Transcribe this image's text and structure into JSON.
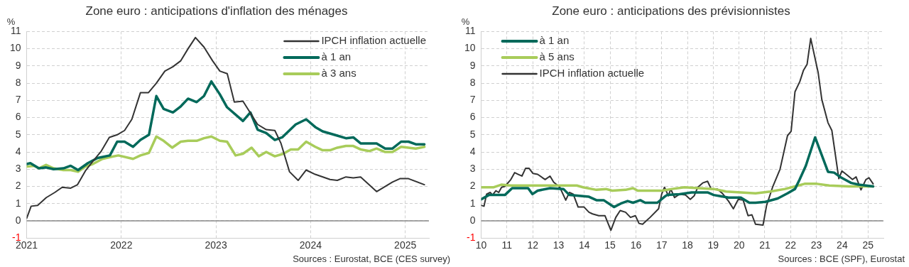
{
  "chart_data": [
    {
      "type": "line",
      "title": "Zone euro : anticipations d'inflation des ménages",
      "ylabel": "%",
      "legend": "top right",
      "grid": true,
      "marker": "none",
      "line_style": "solid",
      "xlim": [
        2021,
        2025.25
      ],
      "xticks": [
        2021,
        2022,
        2023,
        2024,
        2025
      ],
      "ylim": [
        -1,
        11
      ],
      "yticks": [
        -1,
        0,
        1,
        2,
        3,
        4,
        5,
        6,
        7,
        8,
        9,
        10,
        11
      ],
      "annotations": [
        "Sources : Eurostat, BCE (CES survey)"
      ],
      "ref_lines": [
        {
          "axis": "y",
          "value": 0,
          "color": "#888888",
          "line_style": "solid"
        }
      ],
      "series": [
        {
          "name": "IPCH inflation actuelle",
          "color": "#333333",
          "x": [
            2021.0,
            2021.047,
            2021.116,
            2021.207,
            2021.297,
            2021.375,
            2021.465,
            2021.537,
            2021.62,
            2021.698,
            2021.788,
            2021.873,
            2021.956,
            2022.034,
            2022.111,
            2022.202,
            2022.287,
            2022.37,
            2022.46,
            2022.543,
            2022.628,
            2022.705,
            2022.783,
            2022.873,
            2022.964,
            2023.041,
            2023.119,
            2023.194,
            2023.285,
            2023.44,
            2023.531,
            2023.622,
            2023.687,
            2023.777,
            2023.868,
            2023.953,
            2024.049,
            2024.205,
            2024.282,
            2024.373,
            2024.451,
            2024.528,
            2024.697,
            2024.865,
            2024.943,
            2025.034,
            2025.202
          ],
          "values": [
            0.15,
            0.85,
            0.9,
            1.35,
            1.65,
            1.95,
            1.9,
            2.1,
            2.9,
            3.45,
            4.05,
            4.85,
            5.0,
            5.25,
            5.9,
            7.45,
            7.45,
            8.0,
            8.7,
            8.95,
            9.3,
            10.0,
            10.65,
            10.1,
            9.3,
            8.7,
            8.55,
            6.9,
            6.95,
            5.6,
            5.3,
            5.25,
            4.5,
            2.85,
            2.35,
            2.95,
            2.7,
            2.4,
            2.35,
            2.55,
            2.5,
            2.55,
            1.7,
            2.25,
            2.45,
            2.45,
            2.1
          ]
        },
        {
          "name": "à 1 an",
          "color": "#00695a",
          "x": [
            2021.0,
            2021.039,
            2021.129,
            2021.207,
            2021.284,
            2021.388,
            2021.465,
            2021.543,
            2021.646,
            2021.749,
            2021.879,
            2021.956,
            2022.034,
            2022.124,
            2022.202,
            2022.292,
            2022.37,
            2022.447,
            2022.545,
            2022.628,
            2022.705,
            2022.796,
            2022.873,
            2022.951,
            2023.041,
            2023.117,
            2023.285,
            2023.363,
            2023.44,
            2023.531,
            2023.622,
            2023.699,
            2023.842,
            2023.953,
            2024.049,
            2024.127,
            2024.282,
            2024.373,
            2024.451,
            2024.528,
            2024.697,
            2024.788,
            2024.865,
            2024.956,
            2025.034,
            2025.111,
            2025.202
          ],
          "values": [
            3.3,
            3.35,
            3.05,
            3.1,
            3.0,
            3.05,
            3.2,
            2.95,
            3.35,
            3.65,
            3.8,
            4.6,
            4.6,
            4.3,
            4.7,
            5.0,
            7.25,
            6.5,
            6.3,
            6.65,
            7.1,
            6.9,
            7.25,
            8.1,
            7.35,
            6.6,
            5.8,
            6.3,
            5.3,
            5.1,
            4.7,
            4.85,
            5.6,
            5.9,
            5.45,
            5.2,
            4.95,
            4.8,
            4.85,
            4.5,
            4.5,
            4.2,
            4.2,
            4.6,
            4.6,
            4.45,
            4.45
          ]
        },
        {
          "name": "à 3 ans",
          "color": "#a8cc5a",
          "x": [
            2021.0,
            2021.078,
            2021.129,
            2021.207,
            2021.284,
            2021.388,
            2021.465,
            2021.543,
            2021.62,
            2021.698,
            2021.801,
            2021.879,
            2021.969,
            2022.124,
            2022.202,
            2022.292,
            2022.37,
            2022.447,
            2022.537,
            2022.628,
            2022.705,
            2022.796,
            2022.873,
            2022.951,
            2023.041,
            2023.117,
            2023.207,
            2023.285,
            2023.376,
            2023.453,
            2023.531,
            2023.622,
            2023.712,
            2023.79,
            2023.868,
            2023.953,
            2024.049,
            2024.127,
            2024.205,
            2024.282,
            2024.373,
            2024.451,
            2024.528,
            2024.619,
            2024.697,
            2024.788,
            2024.865,
            2024.956,
            2025.034,
            2025.111,
            2025.202
          ],
          "values": [
            3.15,
            3.2,
            3.05,
            3.25,
            3.05,
            2.95,
            2.95,
            2.85,
            3.15,
            3.3,
            3.6,
            3.7,
            3.8,
            3.6,
            3.8,
            3.95,
            4.9,
            4.65,
            4.25,
            4.6,
            4.65,
            4.65,
            4.8,
            4.9,
            4.65,
            4.6,
            3.8,
            3.9,
            4.25,
            3.75,
            4.0,
            3.75,
            3.9,
            4.15,
            4.15,
            4.6,
            4.3,
            4.1,
            4.1,
            4.25,
            4.35,
            4.35,
            4.15,
            4.05,
            4.2,
            4.0,
            4.0,
            4.3,
            4.25,
            4.2,
            4.3
          ]
        }
      ]
    },
    {
      "type": "line",
      "title": "Zone euro : anticipations des prévisionnistes",
      "ylabel": "%",
      "legend": "top left",
      "grid": true,
      "marker": "none",
      "line_style": "solid",
      "xlim": [
        10,
        25.6
      ],
      "xticks": [
        10,
        11,
        12,
        13,
        14,
        15,
        16,
        17,
        18,
        19,
        20,
        21,
        22,
        23,
        24,
        25
      ],
      "ylim": [
        -1,
        11
      ],
      "yticks": [
        -1,
        0,
        1,
        2,
        3,
        4,
        5,
        6,
        7,
        8,
        9,
        10,
        11
      ],
      "annotations": [
        "Sources : BCE (SPF), Eurostat"
      ],
      "ref_lines": [
        {
          "axis": "y",
          "value": 0,
          "color": "#888888",
          "line_style": "solid"
        }
      ],
      "series": [
        {
          "name": "à 1 an",
          "color": "#00695a",
          "x": [
            10,
            10.3,
            10.92,
            11.2,
            11.82,
            11.99,
            12.19,
            12.67,
            13.19,
            13.42,
            14.18,
            14.47,
            14.75,
            15.15,
            15.41,
            15.68,
            15.89,
            16.17,
            16.36,
            16.83,
            17.11,
            17.21,
            17.69,
            18.16,
            18.78,
            19.02,
            19.59,
            20.07,
            20.4,
            20.64,
            21.02,
            21.5,
            21.88,
            22.17,
            22.35,
            22.59,
            22.95,
            23.2,
            23.45,
            23.69,
            23.92,
            24.35,
            24.64,
            25.2
          ],
          "values": [
            1.25,
            1.5,
            1.5,
            1.9,
            1.9,
            1.55,
            1.75,
            1.9,
            1.85,
            1.5,
            1.4,
            1.2,
            1.2,
            0.8,
            1.0,
            1.15,
            1.05,
            1.2,
            1.05,
            1.05,
            1.4,
            1.5,
            1.55,
            1.65,
            1.65,
            1.5,
            1.35,
            1.35,
            1.05,
            1.05,
            1.1,
            1.3,
            1.6,
            1.85,
            2.4,
            3.2,
            4.85,
            3.85,
            2.85,
            2.8,
            2.55,
            2.2,
            2.1,
            2.0
          ]
        },
        {
          "name": "à 5 ans",
          "color": "#a8cc5a",
          "x": [
            10,
            10.49,
            10.78,
            11.15,
            13.71,
            13.95,
            14.47,
            14.84,
            15.08,
            15.6,
            15.89,
            16.07,
            17.02,
            17.4,
            17.88,
            19.02,
            19.5,
            20.64,
            21.21,
            21.78,
            22.17,
            22.54,
            23.02,
            23.5,
            24.26,
            25.2
          ],
          "values": [
            1.95,
            1.95,
            2.1,
            2.05,
            2.05,
            1.95,
            1.8,
            1.85,
            1.75,
            1.8,
            1.9,
            1.75,
            1.75,
            1.85,
            1.95,
            1.85,
            1.7,
            1.6,
            1.7,
            1.85,
            2.0,
            2.15,
            2.15,
            2.05,
            2.0,
            2.0
          ]
        },
        {
          "name": "IPCH inflation actuelle",
          "color": "#333333",
          "x": [
            10,
            10.11,
            10.21,
            10.35,
            10.44,
            10.57,
            10.68,
            10.79,
            10.92,
            11.15,
            11.3,
            11.44,
            11.58,
            11.72,
            11.86,
            12.01,
            12.19,
            12.48,
            12.67,
            12.81,
            13.05,
            13.28,
            13.42,
            13.57,
            13.76,
            13.99,
            14.18,
            14.32,
            14.56,
            14.8,
            15.03,
            15.22,
            15.39,
            15.6,
            15.79,
            15.98,
            16.12,
            16.26,
            16.55,
            16.88,
            17.0,
            17.11,
            17.26,
            17.35,
            17.5,
            17.69,
            17.92,
            18.11,
            18.26,
            18.4,
            18.59,
            18.78,
            18.92,
            19.16,
            19.35,
            19.59,
            19.78,
            19.97,
            20.16,
            20.35,
            20.5,
            20.64,
            20.93,
            21.07,
            21.3,
            21.59,
            21.88,
            22.02,
            22.17,
            22.36,
            22.5,
            22.64,
            22.78,
            23.07,
            23.21,
            23.45,
            23.6,
            23.87,
            23.99,
            24.2,
            24.4,
            24.54,
            24.73,
            24.92,
            25.04,
            25.2
          ],
          "values": [
            0.9,
            0.85,
            1.55,
            1.65,
            1.5,
            1.75,
            1.65,
            1.95,
            2.0,
            2.4,
            2.8,
            2.7,
            2.6,
            3.05,
            3.05,
            2.75,
            2.7,
            2.4,
            2.6,
            2.25,
            1.95,
            1.2,
            1.65,
            1.55,
            0.8,
            0.8,
            0.5,
            0.4,
            0.3,
            0.3,
            -0.55,
            0.2,
            0.6,
            0.5,
            0.2,
            0.3,
            -0.15,
            -0.2,
            0.2,
            0.7,
            1.55,
            1.95,
            1.45,
            1.85,
            1.35,
            1.55,
            1.5,
            1.25,
            1.45,
            1.95,
            2.2,
            2.3,
            1.85,
            1.85,
            1.6,
            1.15,
            0.7,
            1.25,
            1.2,
            0.3,
            0.35,
            -0.2,
            -0.25,
            0.9,
            1.95,
            3.0,
            4.95,
            5.2,
            7.5,
            8.1,
            8.75,
            9.1,
            10.6,
            8.6,
            7.05,
            5.7,
            5.25,
            2.45,
            2.9,
            2.65,
            2.4,
            2.55,
            1.8,
            2.4,
            2.5,
            2.15
          ]
        }
      ]
    }
  ]
}
